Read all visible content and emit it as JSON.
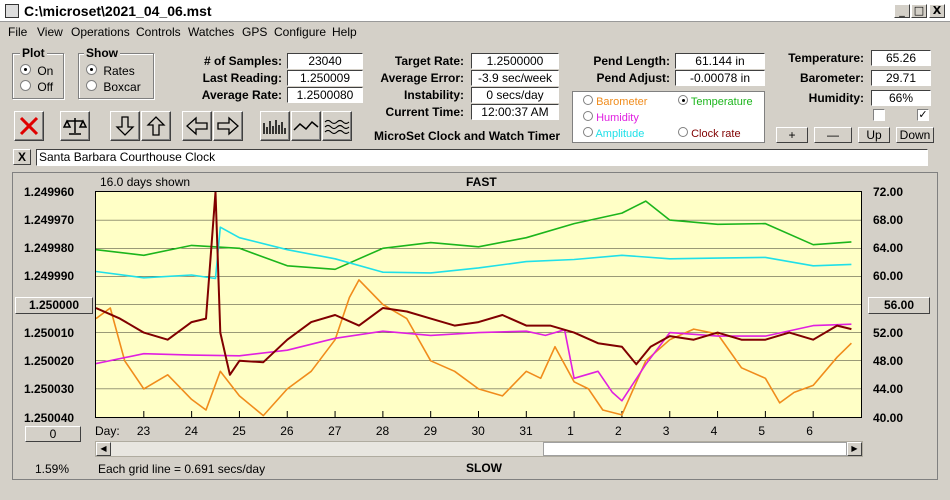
{
  "window": {
    "title": "C:\\microset\\2021_04_06.mst",
    "min": "_",
    "max": "□",
    "close": "X"
  },
  "menu": [
    "File",
    "View",
    "Operations",
    "Controls",
    "Watches",
    "GPS",
    "Configure",
    "Help"
  ],
  "plot_group": {
    "label": "Plot",
    "on": "On",
    "off": "Off",
    "selected": "On"
  },
  "show_group": {
    "label": "Show",
    "rates": "Rates",
    "boxcar": "Boxcar",
    "selected": "Rates"
  },
  "stats": {
    "samples_label": "# of Samples:",
    "samples": "23040",
    "last_label": "Last Reading:",
    "last": "1.250009",
    "avg_label": "Average Rate:",
    "avg": "1.2500080",
    "target_label": "Target Rate:",
    "target": "1.2500000",
    "error_label": "Average Error:",
    "error": "-3.9 sec/week",
    "inst_label": "Instability:",
    "inst": "0 secs/day",
    "time_label": "Current Time:",
    "time": "12:00:37 AM",
    "pend_len_label": "Pend Length:",
    "pend_len": "61.144 in",
    "pend_adj_label": "Pend Adjust:",
    "pend_adj": "-0.00078 in",
    "temp_label": "Temperature:",
    "temp": "65.26",
    "baro_label": "Barometer:",
    "baro": "29.71",
    "hum_label": "Humidity:",
    "hum": "66%"
  },
  "series_select": {
    "barometer": "Barometer",
    "temperature": "Temperature",
    "humidity": "Humidity",
    "amplitude": "Amplitude",
    "clock_rate": "Clock rate",
    "selected": "Temperature"
  },
  "app_caption": "MicroSet Clock and Watch Timer",
  "adj_buttons": {
    "plus": "+",
    "minus": "—",
    "up": "Up",
    "down": "Down"
  },
  "clock_name": "Santa Barbara Courthouse Clock",
  "clear_btn": "X",
  "chart_labels": {
    "days_shown": "16.0 days shown",
    "fast": "FAST",
    "slow": "SLOW",
    "grid_note": "Each grid line = 0.691 secs/day",
    "percent": "1.59%",
    "left_button": "1.250000",
    "right_button": "56.00",
    "zero_button": "0",
    "day_label": "Day:"
  },
  "colors": {
    "temperature": "#1cb51c",
    "humidity": "#e020e0",
    "amplitude": "#20e0e8",
    "barometer": "#f08c1c",
    "clock_rate": "#800000",
    "plot_bg": "#ffffc6"
  },
  "chart_data": {
    "type": "line",
    "x_unit": "day",
    "x_ticks": [
      "23",
      "24",
      "25",
      "26",
      "27",
      "28",
      "29",
      "30",
      "31",
      "1",
      "2",
      "3",
      "4",
      "5",
      "6"
    ],
    "y_left_ticks": [
      "1.249960",
      "1.249970",
      "1.249980",
      "1.249990",
      "1.250000",
      "1.250010",
      "1.250020",
      "1.250030",
      "1.250040"
    ],
    "y_left_range": [
      1.24996,
      1.25004
    ],
    "y_right_ticks": [
      "72.00",
      "68.00",
      "64.00",
      "60.00",
      "56.00",
      "52.00",
      "48.00",
      "44.00",
      "40.00"
    ],
    "y_right_range": [
      40,
      72
    ],
    "x_range": [
      22.0,
      38.0
    ],
    "series": [
      {
        "name": "Temperature",
        "color": "#1cb51c",
        "x": [
          22.0,
          23.0,
          24.0,
          25.0,
          26.0,
          27.0,
          28.0,
          29.0,
          30.0,
          31.0,
          32.0,
          33.0,
          33.5,
          34.0,
          35.0,
          36.0,
          37.0,
          37.8
        ],
        "y": [
          63.8,
          63.0,
          64.4,
          64.0,
          61.5,
          61.0,
          64.0,
          64.8,
          64.2,
          65.5,
          67.5,
          69.0,
          70.7,
          68.0,
          67.4,
          67.5,
          64.5,
          64.9
        ]
      },
      {
        "name": "Amplitude",
        "color": "#20e0e8",
        "x": [
          22.0,
          23.0,
          24.0,
          24.5,
          24.6,
          25.0,
          26.0,
          27.0,
          28.0,
          29.0,
          30.0,
          31.0,
          32.0,
          33.0,
          34.0,
          35.0,
          36.0,
          37.0,
          37.8
        ],
        "y": [
          60.7,
          59.8,
          60.2,
          59.7,
          67.0,
          65.5,
          63.8,
          62.5,
          60.6,
          60.5,
          61.2,
          62.1,
          62.4,
          63.0,
          62.5,
          62.6,
          62.7,
          61.5,
          61.7
        ]
      },
      {
        "name": "Barometer",
        "color": "#f08c1c",
        "x": [
          22.0,
          22.3,
          22.6,
          23.0,
          23.5,
          24.0,
          24.3,
          24.6,
          25.0,
          25.5,
          26.0,
          26.5,
          27.0,
          27.3,
          27.5,
          28.0,
          28.5,
          29.0,
          29.5,
          30.0,
          30.5,
          31.0,
          31.3,
          31.6,
          32.0,
          32.3,
          32.6,
          33.0,
          33.5,
          34.0,
          34.5,
          35.0,
          35.5,
          36.0,
          36.3,
          36.6,
          37.0,
          37.5,
          37.8
        ],
        "y": [
          54.0,
          55.5,
          48.0,
          44.0,
          46.0,
          42.5,
          41.0,
          46.5,
          43.0,
          40.2,
          44.0,
          46.5,
          51.0,
          57.0,
          59.5,
          56.0,
          54.0,
          48.0,
          46.5,
          44.0,
          43.0,
          46.5,
          45.5,
          50.0,
          45.0,
          44.0,
          41.0,
          40.3,
          48.0,
          51.0,
          52.5,
          51.8,
          47.0,
          45.5,
          42.0,
          43.5,
          44.5,
          48.5,
          50.5
        ]
      },
      {
        "name": "Humidity",
        "color": "#e020e0",
        "x": [
          22.0,
          23.0,
          24.0,
          25.0,
          26.0,
          27.0,
          28.0,
          29.0,
          30.0,
          31.0,
          31.4,
          31.8,
          32.0,
          32.5,
          32.8,
          33.0,
          33.5,
          34.0,
          35.0,
          36.0,
          37.0,
          37.8
        ],
        "y": [
          47.6,
          49.0,
          48.8,
          48.7,
          49.5,
          51.2,
          52.2,
          51.6,
          52.0,
          52.2,
          51.6,
          52.4,
          45.5,
          46.5,
          43.5,
          42.3,
          47.5,
          52.0,
          51.5,
          51.5,
          53.0,
          53.2
        ]
      },
      {
        "name": "Clock rate",
        "color": "#800000",
        "x": [
          22.0,
          22.5,
          23.0,
          23.5,
          24.0,
          24.3,
          24.5,
          24.6,
          24.8,
          25.0,
          25.5,
          26.0,
          26.5,
          27.0,
          27.5,
          28.0,
          28.5,
          29.0,
          29.5,
          30.0,
          30.5,
          31.0,
          31.5,
          32.0,
          32.5,
          33.0,
          33.3,
          33.6,
          34.0,
          34.5,
          35.0,
          35.5,
          36.0,
          36.5,
          37.0,
          37.5,
          37.8
        ],
        "y": [
          55.5,
          54.0,
          52.0,
          51.0,
          53.5,
          54.0,
          72.0,
          52.0,
          46.0,
          48.0,
          47.8,
          51.0,
          53.5,
          54.5,
          53.0,
          55.5,
          55.0,
          54.0,
          53.0,
          53.5,
          54.5,
          53.0,
          53.0,
          52.0,
          50.5,
          50.0,
          47.5,
          50.0,
          51.5,
          51.0,
          52.0,
          51.0,
          51.0,
          52.0,
          51.0,
          53.0,
          52.5
        ]
      }
    ]
  }
}
